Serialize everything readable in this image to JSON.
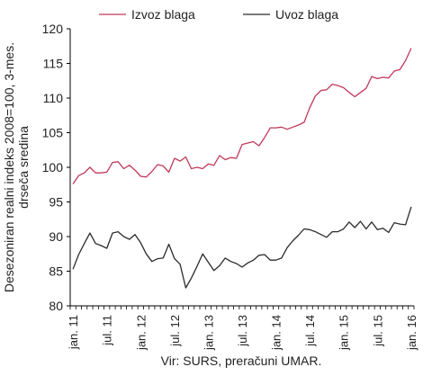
{
  "chart_data": {
    "type": "line",
    "ylabel": "Desezoniran realni indeks 2008=100, 3-mes. drseča sredina",
    "ylabel_lines": [
      "Desezoniran realni indeks 2008=100, 3-mes.",
      "drseča sredina"
    ],
    "source": "Vir: SURS, preračuni UMAR.",
    "ylim": [
      80,
      120
    ],
    "yticks": [
      80,
      85,
      90,
      95,
      100,
      105,
      110,
      115,
      120
    ],
    "x_months": 61,
    "xtick_labels": [
      "jan. 11",
      "jul. 11",
      "jan. 12",
      "jul. 12",
      "jan. 13",
      "jul. 13",
      "jan. 14",
      "jul. 14",
      "jan. 15",
      "jul. 15",
      "jan. 16"
    ],
    "xtick_index": [
      0,
      6,
      12,
      18,
      24,
      30,
      36,
      42,
      48,
      54,
      60
    ],
    "legend_position": "top",
    "grid": false,
    "series": [
      {
        "name": "Izvoz blaga",
        "color": "#c0395a",
        "values": [
          97.6,
          98.8,
          99.2,
          100.0,
          99.2,
          99.2,
          99.3,
          100.7,
          100.8,
          99.8,
          100.3,
          99.6,
          98.7,
          98.6,
          99.4,
          100.4,
          100.2,
          99.3,
          101.3,
          100.9,
          101.5,
          99.8,
          100.0,
          99.8,
          100.5,
          100.3,
          101.7,
          101.1,
          101.4,
          101.3,
          103.3,
          103.5,
          103.7,
          103.1,
          104.3,
          105.7,
          105.7,
          105.8,
          105.5,
          105.8,
          106.1,
          106.5,
          108.6,
          110.3,
          111.1,
          111.2,
          112.0,
          111.8,
          111.5,
          110.8,
          110.2,
          110.8,
          111.4,
          113.1,
          112.8,
          113.0,
          112.9,
          113.9,
          114.1,
          115.4,
          117.2
        ]
      },
      {
        "name": "Uvoz blaga",
        "color": "#2b2b2b",
        "values": [
          85.3,
          87.4,
          89.0,
          90.5,
          89.0,
          88.7,
          88.3,
          90.5,
          90.7,
          90.0,
          89.6,
          90.3,
          89.1,
          87.5,
          86.4,
          86.8,
          86.9,
          88.9,
          86.8,
          86.0,
          82.6,
          84.0,
          85.7,
          87.5,
          86.3,
          85.1,
          85.8,
          86.9,
          86.4,
          86.1,
          85.6,
          86.2,
          86.6,
          87.3,
          87.4,
          86.6,
          86.6,
          86.9,
          88.4,
          89.4,
          90.2,
          91.1,
          91.0,
          90.7,
          90.3,
          89.9,
          90.7,
          90.7,
          91.1,
          92.1,
          91.3,
          92.2,
          91.1,
          92.1,
          91.0,
          91.2,
          90.6,
          92.0,
          91.8,
          91.7,
          94.3
        ]
      }
    ]
  }
}
